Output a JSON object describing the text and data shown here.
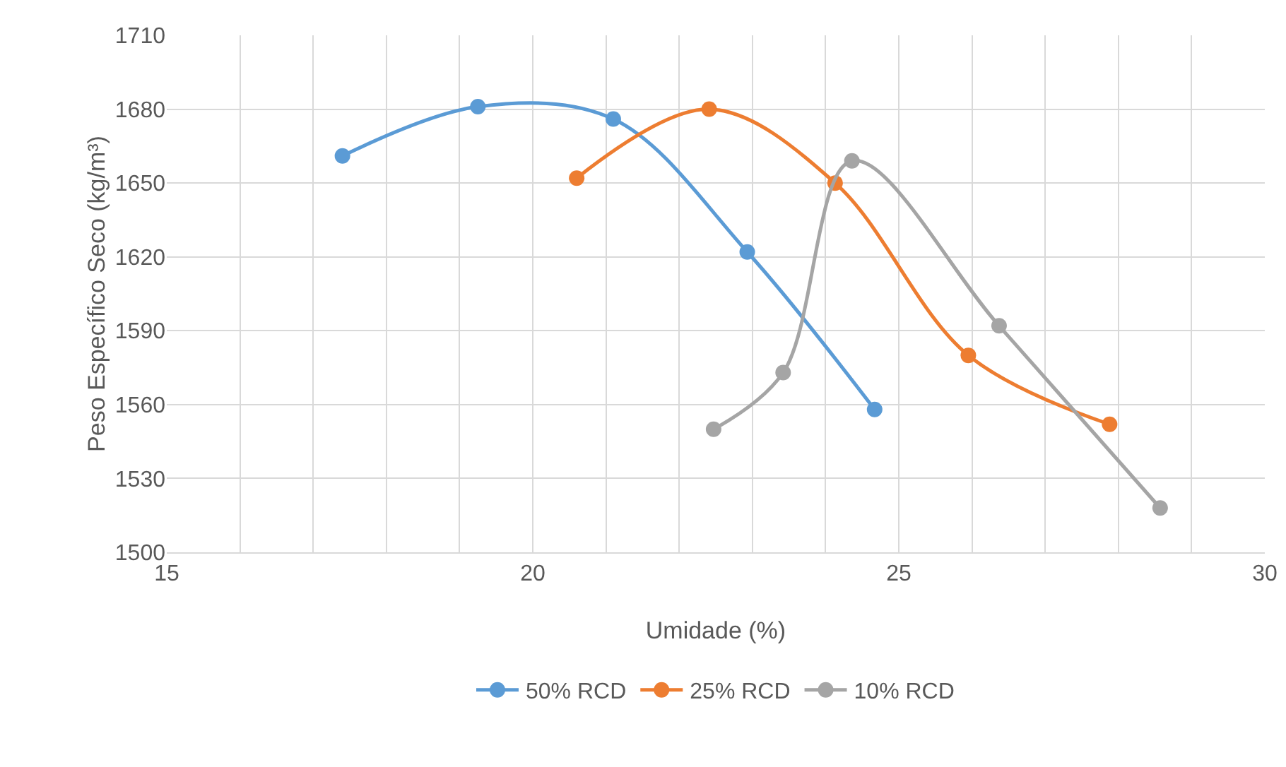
{
  "chart_data": {
    "type": "line",
    "xlabel": "Umidade (%)",
    "ylabel": "Peso Específico Seco (kg/m³)",
    "series": [
      {
        "name": "50% RCD",
        "color": "#5b9bd5",
        "x": [
          17.4,
          19.25,
          21.1,
          22.93,
          24.67
        ],
        "values": [
          1661,
          1681,
          1676,
          1622,
          1558
        ]
      },
      {
        "name": "25% RCD",
        "color": "#ed7d31",
        "x": [
          20.6,
          22.41,
          24.13,
          25.95,
          27.88
        ],
        "values": [
          1652,
          1680,
          1650,
          1580,
          1552
        ]
      },
      {
        "name": "10% RCD",
        "color": "#a5a5a5",
        "x": [
          22.47,
          23.42,
          24.36,
          26.37,
          28.57
        ],
        "values": [
          1550,
          1573,
          1659,
          1592,
          1518
        ]
      }
    ],
    "xlim": [
      15,
      30
    ],
    "xticks": [
      15,
      {
        "value": 16,
        "label": null
      },
      {
        "value": 17,
        "label": null
      },
      {
        "value": 18,
        "label": null
      },
      {
        "value": 19,
        "label": null
      },
      20,
      {
        "value": 21,
        "label": null
      },
      {
        "value": 22,
        "label": null
      },
      {
        "value": 23,
        "label": null
      },
      {
        "value": 24,
        "label": null
      },
      25,
      {
        "value": 26,
        "label": null
      },
      {
        "value": 27,
        "label": null
      },
      {
        "value": 28,
        "label": null
      },
      {
        "value": 29,
        "label": null
      },
      30
    ],
    "ylim": [
      1500,
      1710
    ],
    "yticks": [
      1500,
      1530,
      1560,
      1590,
      1620,
      1650,
      1680,
      1710
    ],
    "grid": true,
    "legend": "bottom",
    "marker": "circle",
    "line_style": "solid"
  }
}
